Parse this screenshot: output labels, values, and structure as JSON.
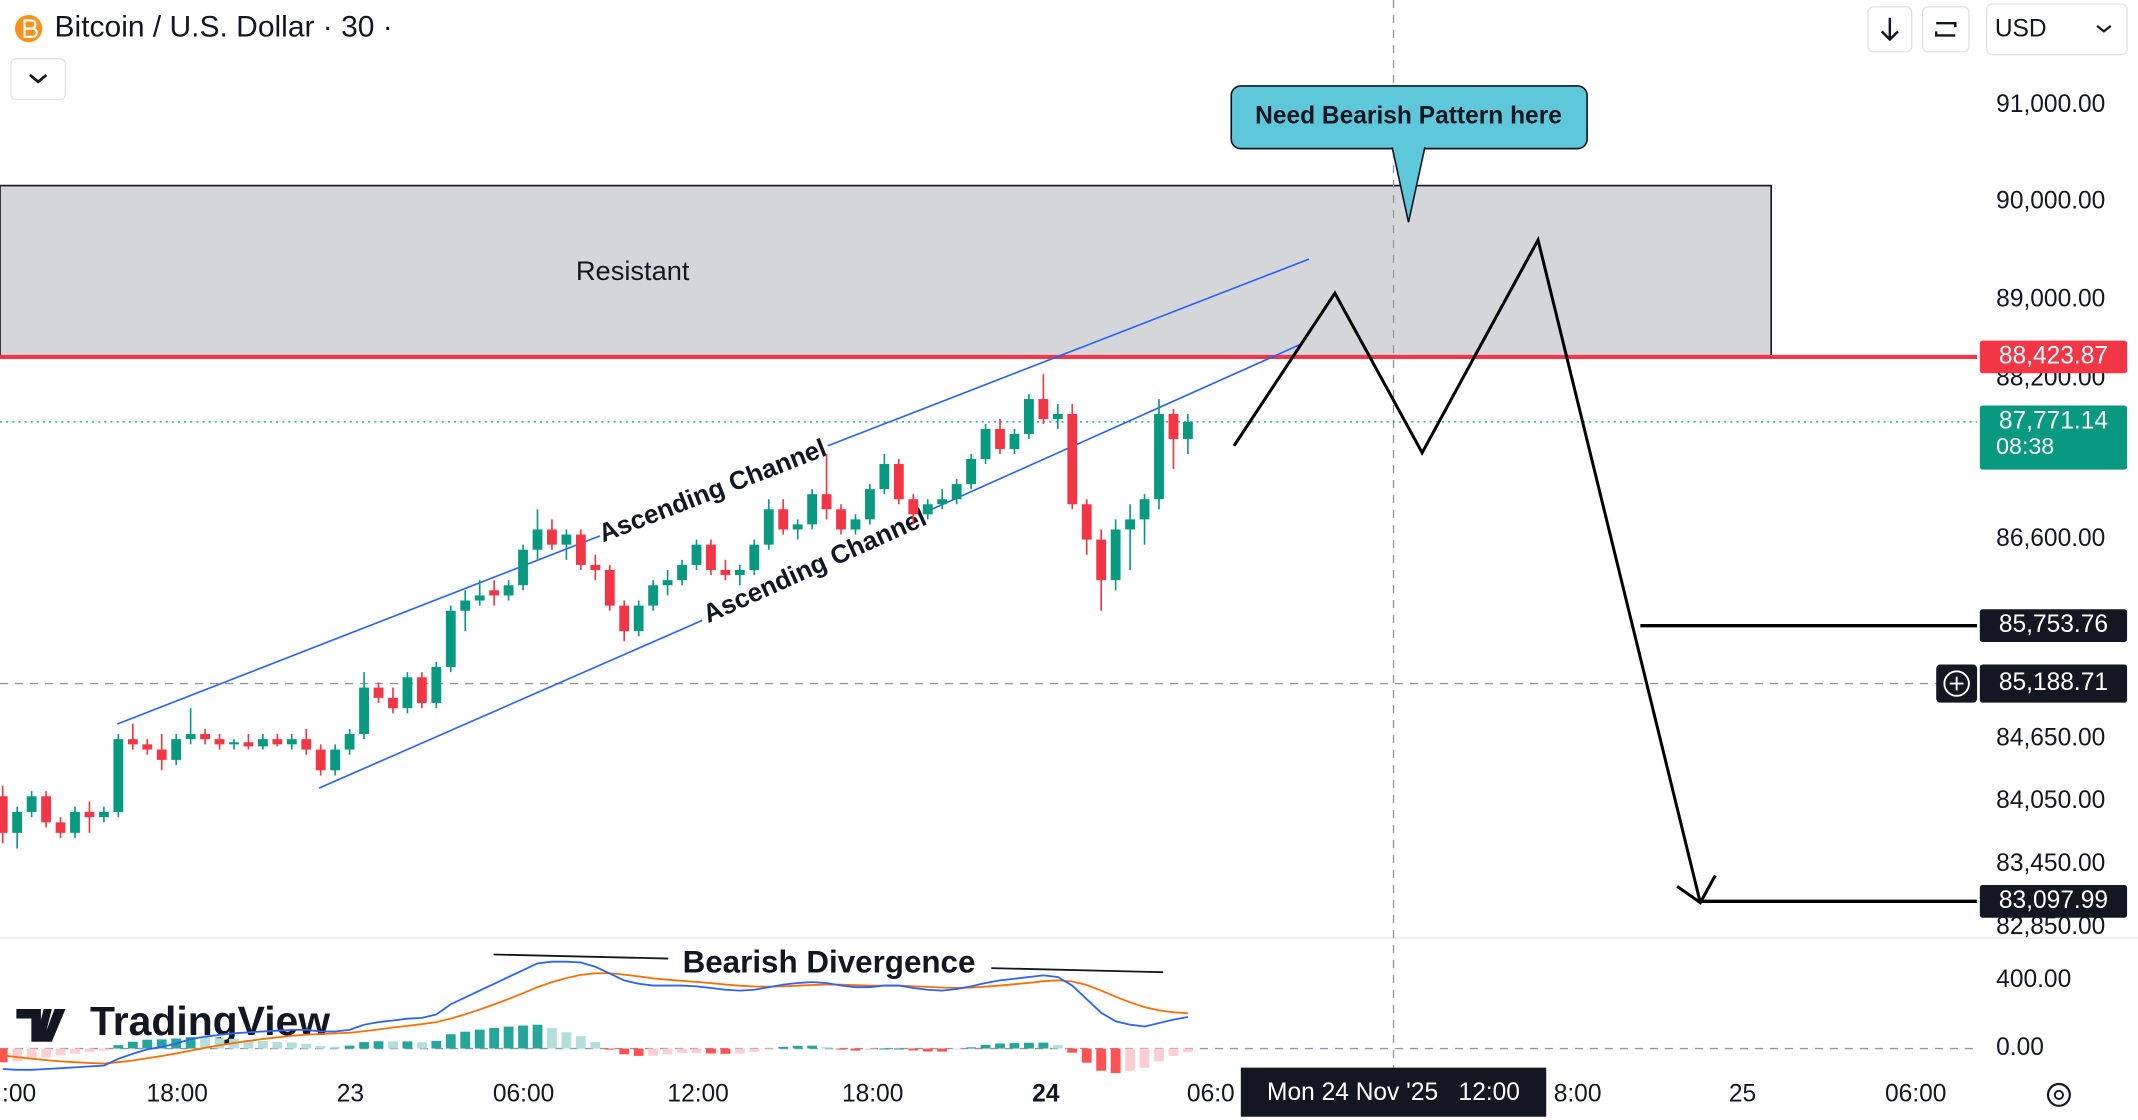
{
  "header": {
    "symbol": "Bitcoin / U.S. Dollar · 30 ·",
    "currency": "USD"
  },
  "branding": "TradingView",
  "chart_data": [
    {
      "type": "candlestick",
      "log_scale": true,
      "grid": false,
      "up_color": "#089981",
      "down_color": "#f23645",
      "ylim": [
        82750,
        92100
      ],
      "yticks": [
        {
          "value": 91000,
          "label": "91,000.00"
        },
        {
          "value": 90000,
          "label": "90,000.00"
        },
        {
          "value": 89000,
          "label": "89,000.00"
        },
        {
          "value": 88200,
          "label": "88,200.00"
        },
        {
          "value": 86600,
          "label": "86,600.00"
        },
        {
          "value": 84650,
          "label": "84,650.00"
        },
        {
          "value": 84050,
          "label": "84,050.00"
        },
        {
          "value": 83450,
          "label": "83,450.00"
        },
        {
          "value": 82850,
          "label": "82,850.00"
        }
      ],
      "time_labels": [
        ":00",
        "18:00",
        "23",
        "06:00",
        "12:00",
        "18:00",
        "24",
        "06:0",
        "8:00",
        "25",
        "06:00"
      ],
      "candles": [
        [
          84100,
          84200,
          83650,
          83750
        ],
        [
          83750,
          84000,
          83600,
          83950
        ],
        [
          83950,
          84150,
          83900,
          84100
        ],
        [
          84100,
          84150,
          83800,
          83850
        ],
        [
          83850,
          83900,
          83700,
          83750
        ],
        [
          83750,
          84000,
          83700,
          83950
        ],
        [
          83950,
          84050,
          83750,
          83900
        ],
        [
          83900,
          84000,
          83850,
          83950
        ],
        [
          83950,
          84700,
          83900,
          84650
        ],
        [
          84650,
          84800,
          84550,
          84600
        ],
        [
          84600,
          84650,
          84500,
          84550
        ],
        [
          84550,
          84700,
          84350,
          84450
        ],
        [
          84450,
          84700,
          84400,
          84650
        ],
        [
          84650,
          84950,
          84600,
          84700
        ],
        [
          84700,
          84750,
          84600,
          84650
        ],
        [
          84650,
          84700,
          84550,
          84600
        ],
        [
          84600,
          84650,
          84550,
          84620
        ],
        [
          84620,
          84700,
          84550,
          84580
        ],
        [
          84580,
          84700,
          84550,
          84650
        ],
        [
          84650,
          84700,
          84580,
          84600
        ],
        [
          84600,
          84700,
          84550,
          84650
        ],
        [
          84650,
          84750,
          84500,
          84550
        ],
        [
          84550,
          84600,
          84300,
          84350
        ],
        [
          84350,
          84600,
          84300,
          84550
        ],
        [
          84550,
          84750,
          84500,
          84700
        ],
        [
          84700,
          85300,
          84650,
          85150
        ],
        [
          85150,
          85200,
          85000,
          85050
        ],
        [
          85050,
          85150,
          84900,
          84950
        ],
        [
          84950,
          85300,
          84900,
          85250
        ],
        [
          85250,
          85300,
          84950,
          85000
        ],
        [
          85000,
          85400,
          84950,
          85350
        ],
        [
          85350,
          85950,
          85300,
          85900
        ],
        [
          85900,
          86100,
          85700,
          86000
        ],
        [
          86000,
          86200,
          85950,
          86050
        ],
        [
          86100,
          86200,
          85950,
          86050
        ],
        [
          86050,
          86200,
          86000,
          86150
        ],
        [
          86150,
          86550,
          86100,
          86500
        ],
        [
          86500,
          86900,
          86400,
          86700
        ],
        [
          86700,
          86800,
          86500,
          86550
        ],
        [
          86550,
          86700,
          86400,
          86650
        ],
        [
          86650,
          86700,
          86300,
          86350
        ],
        [
          86350,
          86450,
          86200,
          86300
        ],
        [
          86300,
          86350,
          85900,
          85950
        ],
        [
          85950,
          86000,
          85600,
          85700
        ],
        [
          85700,
          86000,
          85650,
          85950
        ],
        [
          85950,
          86200,
          85900,
          86150
        ],
        [
          86150,
          86300,
          86050,
          86200
        ],
        [
          86200,
          86400,
          86150,
          86350
        ],
        [
          86350,
          86600,
          86300,
          86550
        ],
        [
          86550,
          86600,
          86250,
          86300
        ],
        [
          86300,
          86400,
          86200,
          86250
        ],
        [
          86250,
          86350,
          86150,
          86300
        ],
        [
          86300,
          86600,
          86250,
          86550
        ],
        [
          86550,
          87000,
          86500,
          86900
        ],
        [
          86900,
          87000,
          86650,
          86700
        ],
        [
          86700,
          86800,
          86600,
          86750
        ],
        [
          86750,
          87100,
          86700,
          87050
        ],
        [
          87050,
          87450,
          86800,
          86900
        ],
        [
          86900,
          86950,
          86650,
          86700
        ],
        [
          86700,
          86850,
          86650,
          86800
        ],
        [
          86800,
          87150,
          86750,
          87100
        ],
        [
          87100,
          87450,
          87050,
          87350
        ],
        [
          87350,
          87400,
          86950,
          87000
        ],
        [
          87000,
          87050,
          86750,
          86850
        ],
        [
          86850,
          87000,
          86800,
          86950
        ],
        [
          86950,
          87100,
          86900,
          87000
        ],
        [
          87000,
          87200,
          86950,
          87150
        ],
        [
          87150,
          87450,
          87100,
          87400
        ],
        [
          87400,
          87750,
          87350,
          87700
        ],
        [
          87700,
          87800,
          87450,
          87500
        ],
        [
          87500,
          87700,
          87450,
          87650
        ],
        [
          87650,
          88050,
          87600,
          88000
        ],
        [
          88000,
          88250,
          87750,
          87800
        ],
        [
          87800,
          87950,
          87700,
          87850
        ],
        [
          87850,
          87950,
          86900,
          86950
        ],
        [
          86950,
          87000,
          86450,
          86600
        ],
        [
          86600,
          86700,
          85900,
          86200
        ],
        [
          86200,
          86800,
          86100,
          86700
        ],
        [
          86700,
          86950,
          86300,
          86800
        ],
        [
          86800,
          87050,
          86550,
          87000
        ],
        [
          87000,
          88000,
          86900,
          87850
        ],
        [
          87850,
          87900,
          87300,
          87600
        ],
        [
          87600,
          87850,
          87450,
          87771.14
        ]
      ],
      "resistance_zone": {
        "label": "Resistant",
        "top": 90170
      },
      "price_badges": [
        {
          "value": 88423.87,
          "label": "88,423.87",
          "color": "#f23645"
        },
        {
          "value": 87771.14,
          "label": "87,771.14",
          "sublabel": "08:38",
          "color": "#089981"
        },
        {
          "value": 85753.76,
          "label": "85,753.76",
          "color": "#131722"
        },
        {
          "value": 83097.99,
          "label": "83,097.99",
          "color": "#131722"
        }
      ],
      "crosshair": {
        "time_label": "Mon 24 Nov '25   12:00",
        "price": {
          "value": 85188.71,
          "label": "85,188.71"
        }
      },
      "annotations": {
        "channel_labels": [
          "Ascending Channel",
          "Ascending Channel"
        ],
        "callout": "Need Bearish Pattern here"
      }
    },
    {
      "type": "macd",
      "annotation": "Bearish Divergence",
      "ylim": [
        -168,
        648
      ],
      "yticks": [
        {
          "value": 0,
          "label": "0.00"
        },
        {
          "value": 400,
          "label": "400.00"
        }
      ],
      "macd_line": {
        "color": "#2962ff",
        "values": [
          -120,
          -125,
          -125,
          -120,
          -115,
          -110,
          -105,
          -100,
          -60,
          -30,
          -5,
          10,
          30,
          55,
          70,
          80,
          90,
          95,
          100,
          105,
          110,
          110,
          100,
          100,
          110,
          140,
          155,
          165,
          175,
          180,
          200,
          260,
          300,
          340,
          380,
          420,
          460,
          500,
          510,
          510,
          505,
          480,
          440,
          400,
          380,
          370,
          370,
          370,
          365,
          355,
          345,
          340,
          345,
          360,
          375,
          385,
          390,
          385,
          370,
          360,
          360,
          370,
          370,
          355,
          345,
          340,
          350,
          365,
          385,
          400,
          410,
          420,
          430,
          420,
          370,
          290,
          210,
          160,
          140,
          130,
          150,
          170,
          185
        ]
      },
      "signal_line": {
        "color": "#ff6d00",
        "values": [
          -40,
          -50,
          -60,
          -68,
          -75,
          -80,
          -85,
          -88,
          -80,
          -70,
          -57,
          -44,
          -29,
          -12,
          4,
          19,
          33,
          45,
          56,
          66,
          75,
          82,
          86,
          89,
          93,
          102,
          112,
          123,
          133,
          143,
          155,
          176,
          201,
          229,
          259,
          291,
          325,
          360,
          390,
          414,
          432,
          442,
          442,
          434,
          423,
          412,
          404,
          397,
          391,
          384,
          376,
          369,
          364,
          363,
          365,
          369,
          373,
          376,
          375,
          372,
          369,
          369,
          369,
          366,
          362,
          358,
          356,
          358,
          363,
          370,
          378,
          386,
          395,
          400,
          394,
          373,
          340,
          304,
          271,
          243,
          224,
          213,
          207
        ]
      },
      "histogram": {
        "colors": [
          "#26a69a",
          "#b2dfdb",
          "#ff5252",
          "#ffcdd2"
        ],
        "values": [
          -80,
          -75,
          -65,
          -52,
          -40,
          -30,
          -20,
          -12,
          20,
          40,
          52,
          54,
          59,
          67,
          66,
          61,
          57,
          50,
          44,
          39,
          35,
          28,
          14,
          11,
          17,
          38,
          43,
          42,
          42,
          37,
          45,
          84,
          99,
          111,
          121,
          129,
          135,
          140,
          120,
          96,
          73,
          38,
          -2,
          -34,
          -43,
          -42,
          -34,
          -27,
          -26,
          -29,
          -31,
          -29,
          -19,
          -3,
          10,
          16,
          17,
          9,
          -5,
          -12,
          -9,
          1,
          1,
          -11,
          -17,
          -18,
          -6,
          7,
          22,
          30,
          32,
          34,
          35,
          20,
          -24,
          -83,
          -130,
          -144,
          -131,
          -113,
          -74,
          -43,
          -22
        ]
      }
    }
  ]
}
